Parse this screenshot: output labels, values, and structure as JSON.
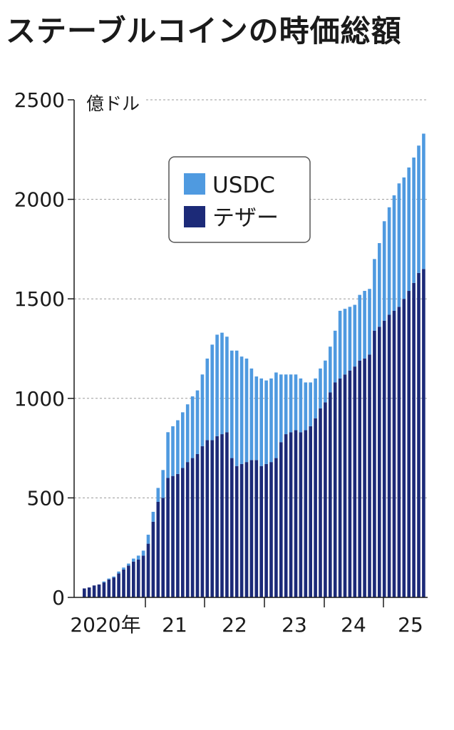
{
  "chart_data": {
    "type": "bar",
    "stacked": true,
    "title": "ステーブルコインの時価総額",
    "unit": "億ドル",
    "ylim": [
      0,
      2500
    ],
    "yticks": [
      0,
      500,
      1000,
      1500,
      2000,
      2500
    ],
    "grid": true,
    "legend_position": "top-left",
    "x_tick_labels": [
      "2020年",
      "21",
      "22",
      "23",
      "24",
      "25"
    ],
    "series": [
      {
        "name": "テザー",
        "color": "#1c2a78",
        "values": [
          45,
          50,
          60,
          65,
          75,
          90,
          100,
          120,
          140,
          160,
          180,
          190,
          210,
          270,
          380,
          480,
          500,
          600,
          610,
          620,
          650,
          680,
          700,
          720,
          760,
          790,
          790,
          810,
          820,
          830,
          700,
          660,
          670,
          680,
          690,
          690,
          660,
          670,
          680,
          700,
          780,
          820,
          830,
          840,
          830,
          840,
          860,
          900,
          950,
          980,
          1030,
          1080,
          1100,
          1120,
          1140,
          1160,
          1190,
          1200,
          1220,
          1340,
          1360,
          1390,
          1420,
          1440,
          1460,
          1500,
          1540,
          1580,
          1630,
          1650
        ]
      },
      {
        "name": "USDC",
        "color": "#4f9ae0",
        "values": [
          0,
          0,
          0,
          0,
          5,
          5,
          5,
          10,
          10,
          10,
          15,
          20,
          25,
          45,
          50,
          70,
          140,
          230,
          250,
          270,
          280,
          290,
          310,
          320,
          360,
          410,
          480,
          510,
          510,
          480,
          540,
          580,
          540,
          520,
          460,
          420,
          440,
          420,
          420,
          430,
          340,
          300,
          290,
          280,
          270,
          240,
          220,
          200,
          200,
          210,
          230,
          260,
          340,
          330,
          320,
          310,
          330,
          340,
          330,
          360,
          420,
          500,
          540,
          580,
          620,
          610,
          620,
          630,
          640,
          680
        ]
      }
    ]
  }
}
